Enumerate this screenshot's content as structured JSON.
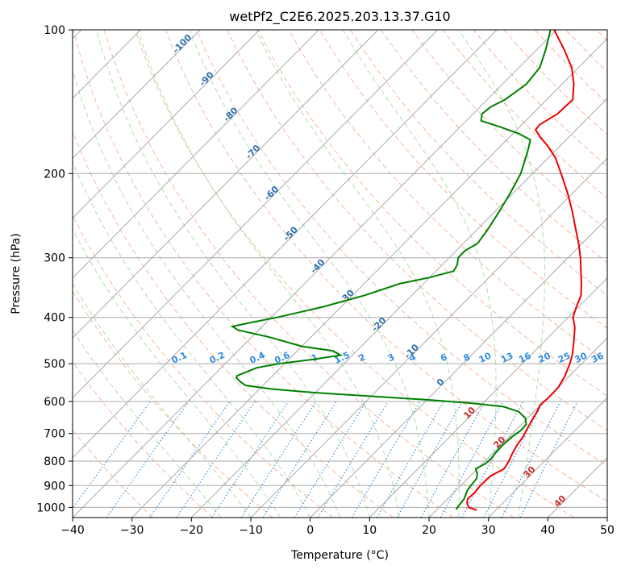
{
  "chart_data": {
    "type": "line",
    "title": "wetPf2_C2E6.2025.203.13.37.G10",
    "xlabel": "Temperature (°C)",
    "ylabel": "Pressure (hPa)",
    "xlim": [
      -40,
      50
    ],
    "ylim": [
      1050,
      100
    ],
    "y_scale": "log",
    "skew": true,
    "grid": true,
    "x_ticks": [
      -40,
      -30,
      -20,
      -10,
      0,
      10,
      20,
      30,
      40,
      50
    ],
    "y_ticks": [
      100,
      200,
      300,
      400,
      500,
      600,
      700,
      800,
      900,
      1000
    ],
    "colors": {
      "temperature": "#ee0000",
      "dewpoint": "#008000",
      "dry_adiabat": "#f4a582",
      "moist_adiabat": "#a6d9a6",
      "mixing_ratio": "#3d8fd6",
      "isotherm": "#aaaaaa"
    },
    "isotherm_labels": [
      -100,
      -90,
      -80,
      -70,
      -60,
      -50,
      -40,
      -30,
      -20,
      -10,
      0,
      10,
      20,
      30,
      40
    ],
    "mixing_ratio_labels": [
      "0.1",
      "0.2",
      "0.4",
      "0.6",
      "1",
      "1.5",
      "2",
      "3",
      "4",
      "6",
      "8",
      "10",
      "13",
      "16",
      "20",
      "25",
      "30",
      "36"
    ],
    "series": [
      {
        "key": "temperature",
        "points": [
          [
            1013,
            26.8
          ],
          [
            1000,
            25.0
          ],
          [
            980,
            24.0
          ],
          [
            960,
            23.4
          ],
          [
            930,
            23.5
          ],
          [
            900,
            23.3
          ],
          [
            860,
            23.4
          ],
          [
            830,
            24.5
          ],
          [
            800,
            24.0
          ],
          [
            770,
            23.3
          ],
          [
            740,
            22.7
          ],
          [
            710,
            22.3
          ],
          [
            680,
            21.6
          ],
          [
            650,
            20.9
          ],
          [
            630,
            20.5
          ],
          [
            610,
            19.9
          ],
          [
            590,
            20.1
          ],
          [
            560,
            20.0
          ],
          [
            530,
            19.2
          ],
          [
            500,
            18.0
          ],
          [
            480,
            17.0
          ],
          [
            460,
            15.7
          ],
          [
            440,
            14.3
          ],
          [
            420,
            12.8
          ],
          [
            400,
            10.8
          ],
          [
            380,
            9.6
          ],
          [
            360,
            8.5
          ],
          [
            340,
            6.6
          ],
          [
            320,
            4.4
          ],
          [
            300,
            2.1
          ],
          [
            280,
            -0.6
          ],
          [
            260,
            -3.7
          ],
          [
            240,
            -7.0
          ],
          [
            220,
            -10.8
          ],
          [
            200,
            -15.2
          ],
          [
            185,
            -18.9
          ],
          [
            175,
            -22.1
          ],
          [
            168,
            -24.7
          ],
          [
            162,
            -26.8
          ],
          [
            158,
            -27.0
          ],
          [
            150,
            -25.8
          ],
          [
            140,
            -25.6
          ],
          [
            130,
            -28.0
          ],
          [
            120,
            -31.1
          ],
          [
            110,
            -35.4
          ],
          [
            100,
            -40.4
          ]
        ]
      },
      {
        "key": "dewpoint",
        "points": [
          [
            1010,
            23.2
          ],
          [
            990,
            23.0
          ],
          [
            960,
            22.8
          ],
          [
            920,
            21.9
          ],
          [
            900,
            21.7
          ],
          [
            870,
            21.5
          ],
          [
            850,
            20.8
          ],
          [
            830,
            19.7
          ],
          [
            810,
            20.5
          ],
          [
            790,
            20.6
          ],
          [
            770,
            20.4
          ],
          [
            740,
            20.3
          ],
          [
            710,
            20.5
          ],
          [
            690,
            20.9
          ],
          [
            670,
            20.8
          ],
          [
            650,
            19.6
          ],
          [
            630,
            17.4
          ],
          [
            615,
            14.0
          ],
          [
            605,
            8.0
          ],
          [
            595,
            0.0
          ],
          [
            585,
            -10.0
          ],
          [
            575,
            -20.0
          ],
          [
            565,
            -28.0
          ],
          [
            555,
            -33.0
          ],
          [
            545,
            -34.5
          ],
          [
            535,
            -35.8
          ],
          [
            530,
            -36.0
          ],
          [
            520,
            -35.0
          ],
          [
            510,
            -34.0
          ],
          [
            500,
            -31.0
          ],
          [
            490,
            -26.0
          ],
          [
            480,
            -22.0
          ],
          [
            470,
            -24.0
          ],
          [
            460,
            -30.0
          ],
          [
            440,
            -37.0
          ],
          [
            425,
            -43.5
          ],
          [
            418,
            -45.0
          ],
          [
            410,
            -42.5
          ],
          [
            400,
            -39.0
          ],
          [
            380,
            -33.0
          ],
          [
            360,
            -28.0
          ],
          [
            340,
            -24.0
          ],
          [
            330,
            -20.0
          ],
          [
            320,
            -17.0
          ],
          [
            310,
            -17.5
          ],
          [
            300,
            -18.5
          ],
          [
            290,
            -18.5
          ],
          [
            280,
            -17.6
          ],
          [
            260,
            -18.3
          ],
          [
            240,
            -19.3
          ],
          [
            220,
            -20.5
          ],
          [
            200,
            -22.0
          ],
          [
            180,
            -24.5
          ],
          [
            170,
            -26.0
          ],
          [
            165,
            -29.0
          ],
          [
            160,
            -33.0
          ],
          [
            155,
            -37.5
          ],
          [
            150,
            -38.5
          ],
          [
            145,
            -38.2
          ],
          [
            140,
            -37.0
          ],
          [
            130,
            -36.0
          ],
          [
            120,
            -36.5
          ],
          [
            110,
            -38.5
          ],
          [
            100,
            -41.0
          ]
        ]
      }
    ]
  }
}
